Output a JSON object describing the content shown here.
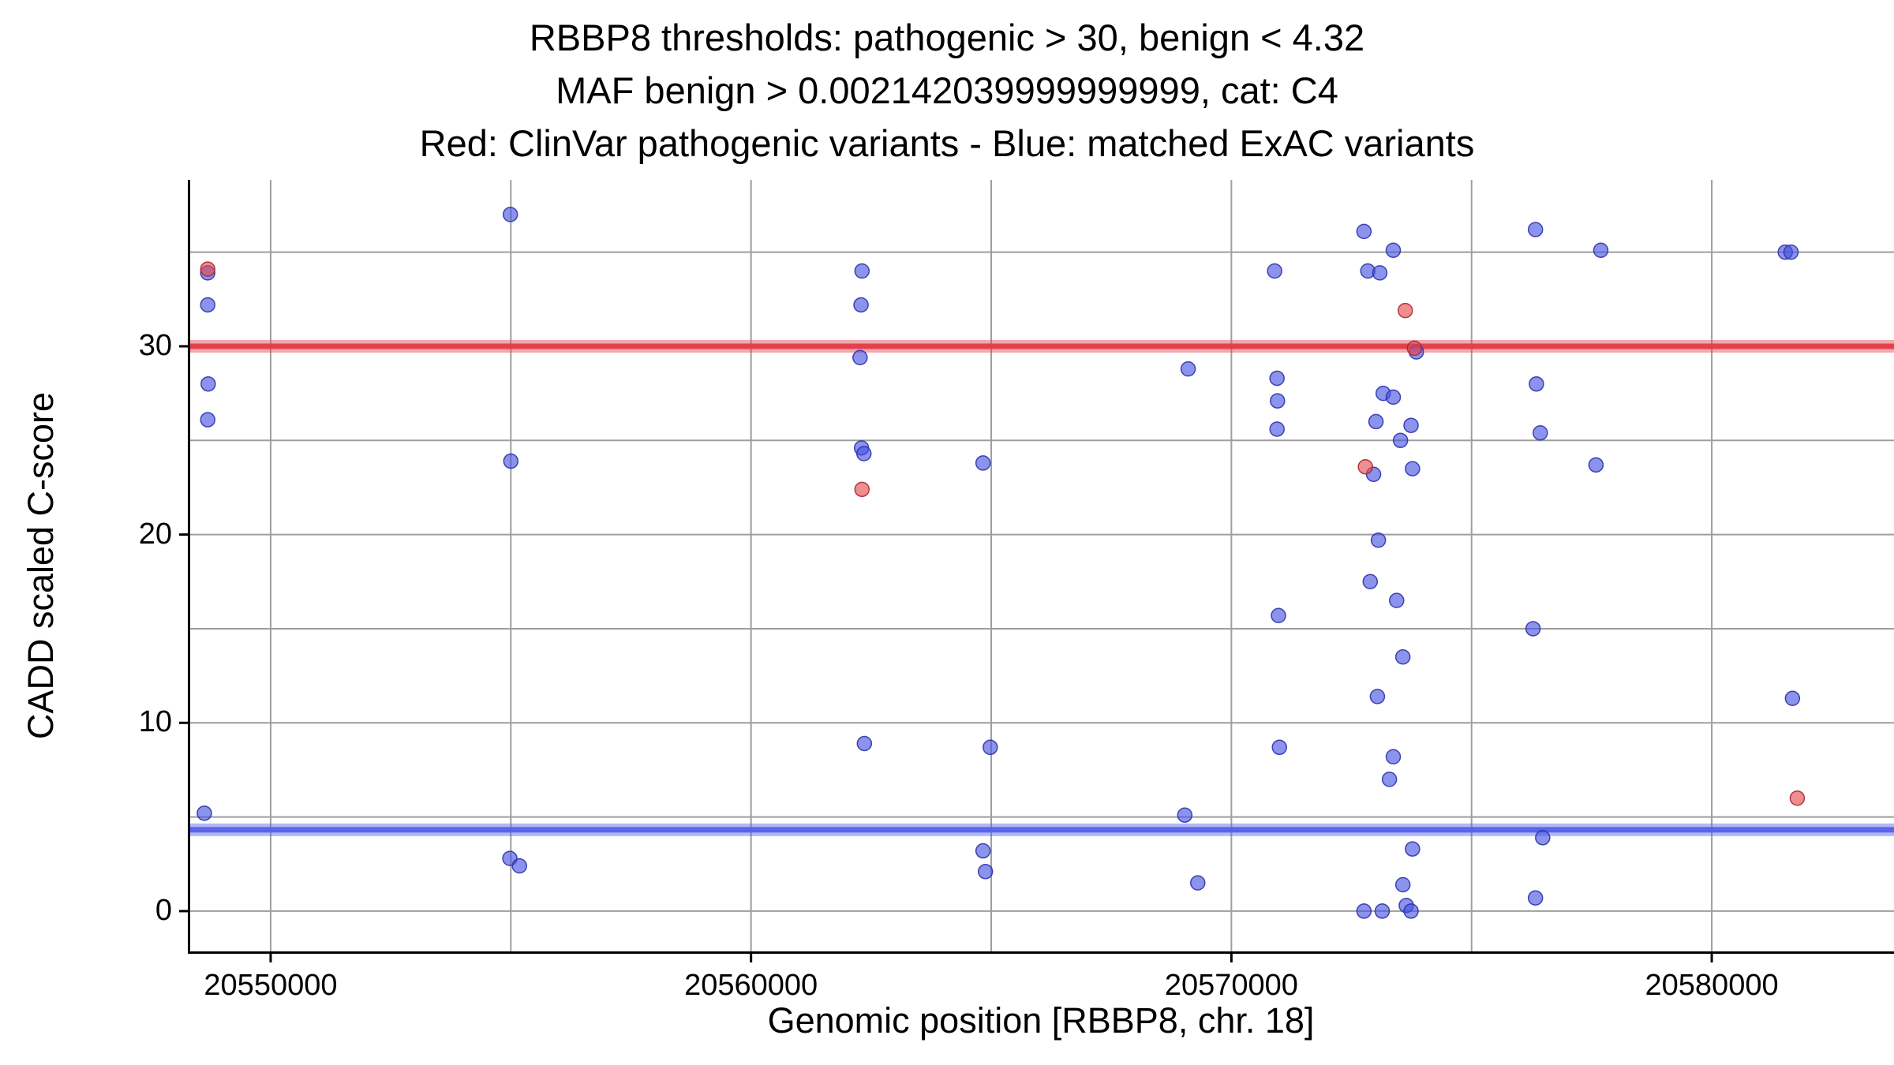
{
  "page": {
    "background": "#ffffff"
  },
  "chart_data": {
    "type": "scatter",
    "title_lines": [
      "RBBP8 thresholds: pathogenic > 30, benign < 4.32",
      "MAF benign > 0.002142039999999999, cat: C4",
      "Red: ClinVar pathogenic variants - Blue: matched ExAC variants"
    ],
    "xlabel": "Genomic position [RBBP8, chr. 18]",
    "ylabel": "CADD scaled C-score",
    "xlim": [
      20548325,
      20583843
    ],
    "ylim": [
      -2.14,
      38.84
    ],
    "xticks": [
      20550000,
      20560000,
      20570000,
      20580000
    ],
    "xtick_labels": [
      "20550000",
      "20560000",
      "20570000",
      "20580000"
    ],
    "yticks": [
      0,
      10,
      20,
      30
    ],
    "ytick_labels": [
      "0",
      "10",
      "20",
      "30"
    ],
    "x_gridlines": [
      20550000,
      20555000,
      20560000,
      20565000,
      20570000,
      20575000,
      20580000
    ],
    "y_gridlines": [
      0,
      5,
      10,
      15,
      20,
      25,
      30,
      35
    ],
    "grid_color": "#9e9e9e",
    "axis_color": "#000000",
    "grid_on": true,
    "legend_position": "none",
    "point_radius": 9,
    "point_opacity": 0.62,
    "threshold_band_outer_height": 16,
    "threshold_band_inner_height": 7,
    "thresholds": [
      {
        "name": "pathogenic",
        "value": 30,
        "color": "#e23d49"
      },
      {
        "name": "benign",
        "value": 4.32,
        "color": "#5560e8"
      }
    ],
    "series": [
      {
        "key": "exac",
        "name": "matched ExAC variants",
        "color": "#4550e0",
        "stroke": "#2b33a8",
        "points": [
          [
            20548690,
            33.9
          ],
          [
            20548690,
            32.2
          ],
          [
            20548700,
            28.0
          ],
          [
            20548690,
            26.1
          ],
          [
            20548620,
            5.2
          ],
          [
            20554990,
            37.0
          ],
          [
            20555000,
            23.9
          ],
          [
            20554980,
            2.8
          ],
          [
            20555180,
            2.4
          ],
          [
            20562310,
            34.0
          ],
          [
            20562290,
            32.2
          ],
          [
            20562270,
            29.4
          ],
          [
            20562300,
            24.6
          ],
          [
            20562350,
            24.3
          ],
          [
            20562360,
            8.9
          ],
          [
            20564830,
            23.8
          ],
          [
            20564980,
            8.7
          ],
          [
            20564830,
            3.2
          ],
          [
            20564880,
            2.1
          ],
          [
            20569100,
            28.8
          ],
          [
            20569030,
            5.1
          ],
          [
            20569300,
            1.5
          ],
          [
            20570900,
            34.0
          ],
          [
            20570950,
            28.3
          ],
          [
            20570960,
            27.1
          ],
          [
            20570950,
            25.6
          ],
          [
            20570980,
            15.7
          ],
          [
            20571000,
            8.7
          ],
          [
            20572760,
            36.1
          ],
          [
            20573370,
            35.1
          ],
          [
            20572840,
            34.0
          ],
          [
            20573090,
            33.9
          ],
          [
            20573850,
            29.7
          ],
          [
            20573160,
            27.5
          ],
          [
            20573370,
            27.3
          ],
          [
            20573010,
            26.0
          ],
          [
            20573740,
            25.8
          ],
          [
            20573520,
            25.0
          ],
          [
            20573770,
            23.5
          ],
          [
            20572960,
            23.2
          ],
          [
            20573060,
            19.7
          ],
          [
            20572890,
            17.5
          ],
          [
            20573440,
            16.5
          ],
          [
            20573570,
            13.5
          ],
          [
            20573040,
            11.4
          ],
          [
            20573370,
            8.2
          ],
          [
            20573290,
            7.0
          ],
          [
            20573770,
            3.3
          ],
          [
            20573570,
            1.4
          ],
          [
            20572760,
            0.0
          ],
          [
            20573140,
            0.0
          ],
          [
            20573640,
            0.3
          ],
          [
            20573740,
            0.0
          ],
          [
            20576330,
            36.2
          ],
          [
            20576350,
            28.0
          ],
          [
            20576430,
            25.4
          ],
          [
            20576280,
            15.0
          ],
          [
            20576480,
            3.9
          ],
          [
            20576330,
            0.7
          ],
          [
            20577690,
            35.1
          ],
          [
            20577590,
            23.7
          ],
          [
            20581530,
            35.0
          ],
          [
            20581650,
            35.0
          ],
          [
            20581680,
            11.3
          ]
        ]
      },
      {
        "key": "clinvar",
        "name": "ClinVar pathogenic variants",
        "color": "#e5484d",
        "stroke": "#a82730",
        "points": [
          [
            20548690,
            34.1
          ],
          [
            20562310,
            22.4
          ],
          [
            20572790,
            23.6
          ],
          [
            20573620,
            31.9
          ],
          [
            20573810,
            29.9
          ],
          [
            20581780,
            6.0
          ]
        ]
      }
    ]
  }
}
